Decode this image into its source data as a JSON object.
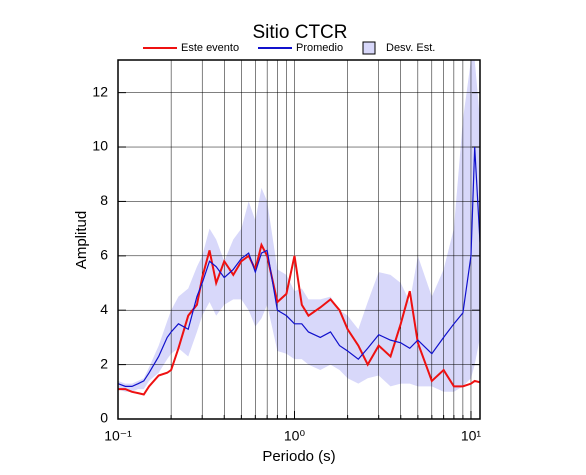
{
  "chart_data": {
    "type": "line",
    "title": "Sitio CTCR",
    "xlabel": "Periodo (s)",
    "ylabel": "Amplitud",
    "xscale": "log",
    "grid": true,
    "xlim": [
      0.1,
      11.25
    ],
    "ylim": [
      0,
      13.2
    ],
    "xticks": [
      {
        "value": 0.1,
        "label": "10⁻¹"
      },
      {
        "value": 1,
        "label": "10⁰"
      },
      {
        "value": 10,
        "label": "10¹"
      }
    ],
    "yticks": [
      0,
      2,
      4,
      6,
      8,
      10,
      12
    ],
    "x": [
      0.1,
      0.11,
      0.12,
      0.13,
      0.14,
      0.15,
      0.17,
      0.19,
      0.2,
      0.22,
      0.25,
      0.28,
      0.3,
      0.33,
      0.36,
      0.4,
      0.45,
      0.5,
      0.55,
      0.6,
      0.65,
      0.7,
      0.8,
      0.9,
      1.0,
      1.1,
      1.2,
      1.4,
      1.6,
      1.8,
      2.0,
      2.3,
      2.6,
      3.0,
      3.5,
      4.0,
      4.5,
      5.0,
      6.0,
      7.0,
      8.0,
      9.0,
      10.0,
      10.5,
      11.25
    ],
    "band": {
      "name": "Desv. Est.",
      "color": "#d8d8fa",
      "upper": [
        1.4,
        1.3,
        1.3,
        1.4,
        1.5,
        1.9,
        2.7,
        3.6,
        4.0,
        4.5,
        4.8,
        5.6,
        6.0,
        7.0,
        6.6,
        5.8,
        6.6,
        7.0,
        8.0,
        7.3,
        8.5,
        8.0,
        5.5,
        5.3,
        4.7,
        4.8,
        4.4,
        4.4,
        4.5,
        4.0,
        3.8,
        3.3,
        4.3,
        5.4,
        5.3,
        5.0,
        4.3,
        6.0,
        4.5,
        5.5,
        7.0,
        11.0,
        13.2,
        13.2,
        11.0
      ],
      "lower": [
        1.1,
        1.0,
        1.0,
        1.1,
        1.1,
        1.4,
        1.7,
        2.2,
        2.4,
        2.6,
        2.3,
        3.2,
        3.8,
        4.3,
        3.8,
        4.2,
        4.4,
        4.4,
        4.0,
        3.4,
        3.7,
        4.2,
        2.5,
        2.4,
        2.2,
        2.2,
        2.0,
        1.8,
        2.0,
        1.8,
        1.5,
        1.3,
        1.5,
        1.6,
        1.2,
        1.3,
        1.3,
        1.2,
        1.2,
        1.0,
        1.0,
        1.2,
        1.5,
        2.0,
        3.0
      ]
    },
    "series": [
      {
        "name": "Este evento",
        "color": "#ee1111",
        "values": [
          1.1,
          1.1,
          1.0,
          0.95,
          0.9,
          1.2,
          1.6,
          1.7,
          1.8,
          2.6,
          3.8,
          4.2,
          5.2,
          6.2,
          5.0,
          5.8,
          5.3,
          5.8,
          6.0,
          5.5,
          6.4,
          6.0,
          4.3,
          4.6,
          6.0,
          4.2,
          3.8,
          4.1,
          4.4,
          4.0,
          3.3,
          2.7,
          2.0,
          2.7,
          2.3,
          3.5,
          4.7,
          2.8,
          1.4,
          1.8,
          1.2,
          1.2,
          1.3,
          1.4,
          1.35
        ]
      },
      {
        "name": "Promedio",
        "color": "#1111cc",
        "values": [
          1.3,
          1.2,
          1.2,
          1.3,
          1.4,
          1.7,
          2.3,
          3.0,
          3.2,
          3.5,
          3.3,
          4.5,
          5.0,
          5.8,
          5.6,
          5.2,
          5.5,
          5.9,
          6.1,
          5.4,
          6.1,
          6.2,
          4.0,
          3.8,
          3.5,
          3.5,
          3.2,
          3.0,
          3.2,
          2.7,
          2.5,
          2.2,
          2.6,
          3.1,
          2.9,
          2.8,
          2.6,
          2.9,
          2.4,
          3.0,
          3.5,
          3.9,
          6.0,
          10.0,
          6.5
        ]
      }
    ]
  }
}
